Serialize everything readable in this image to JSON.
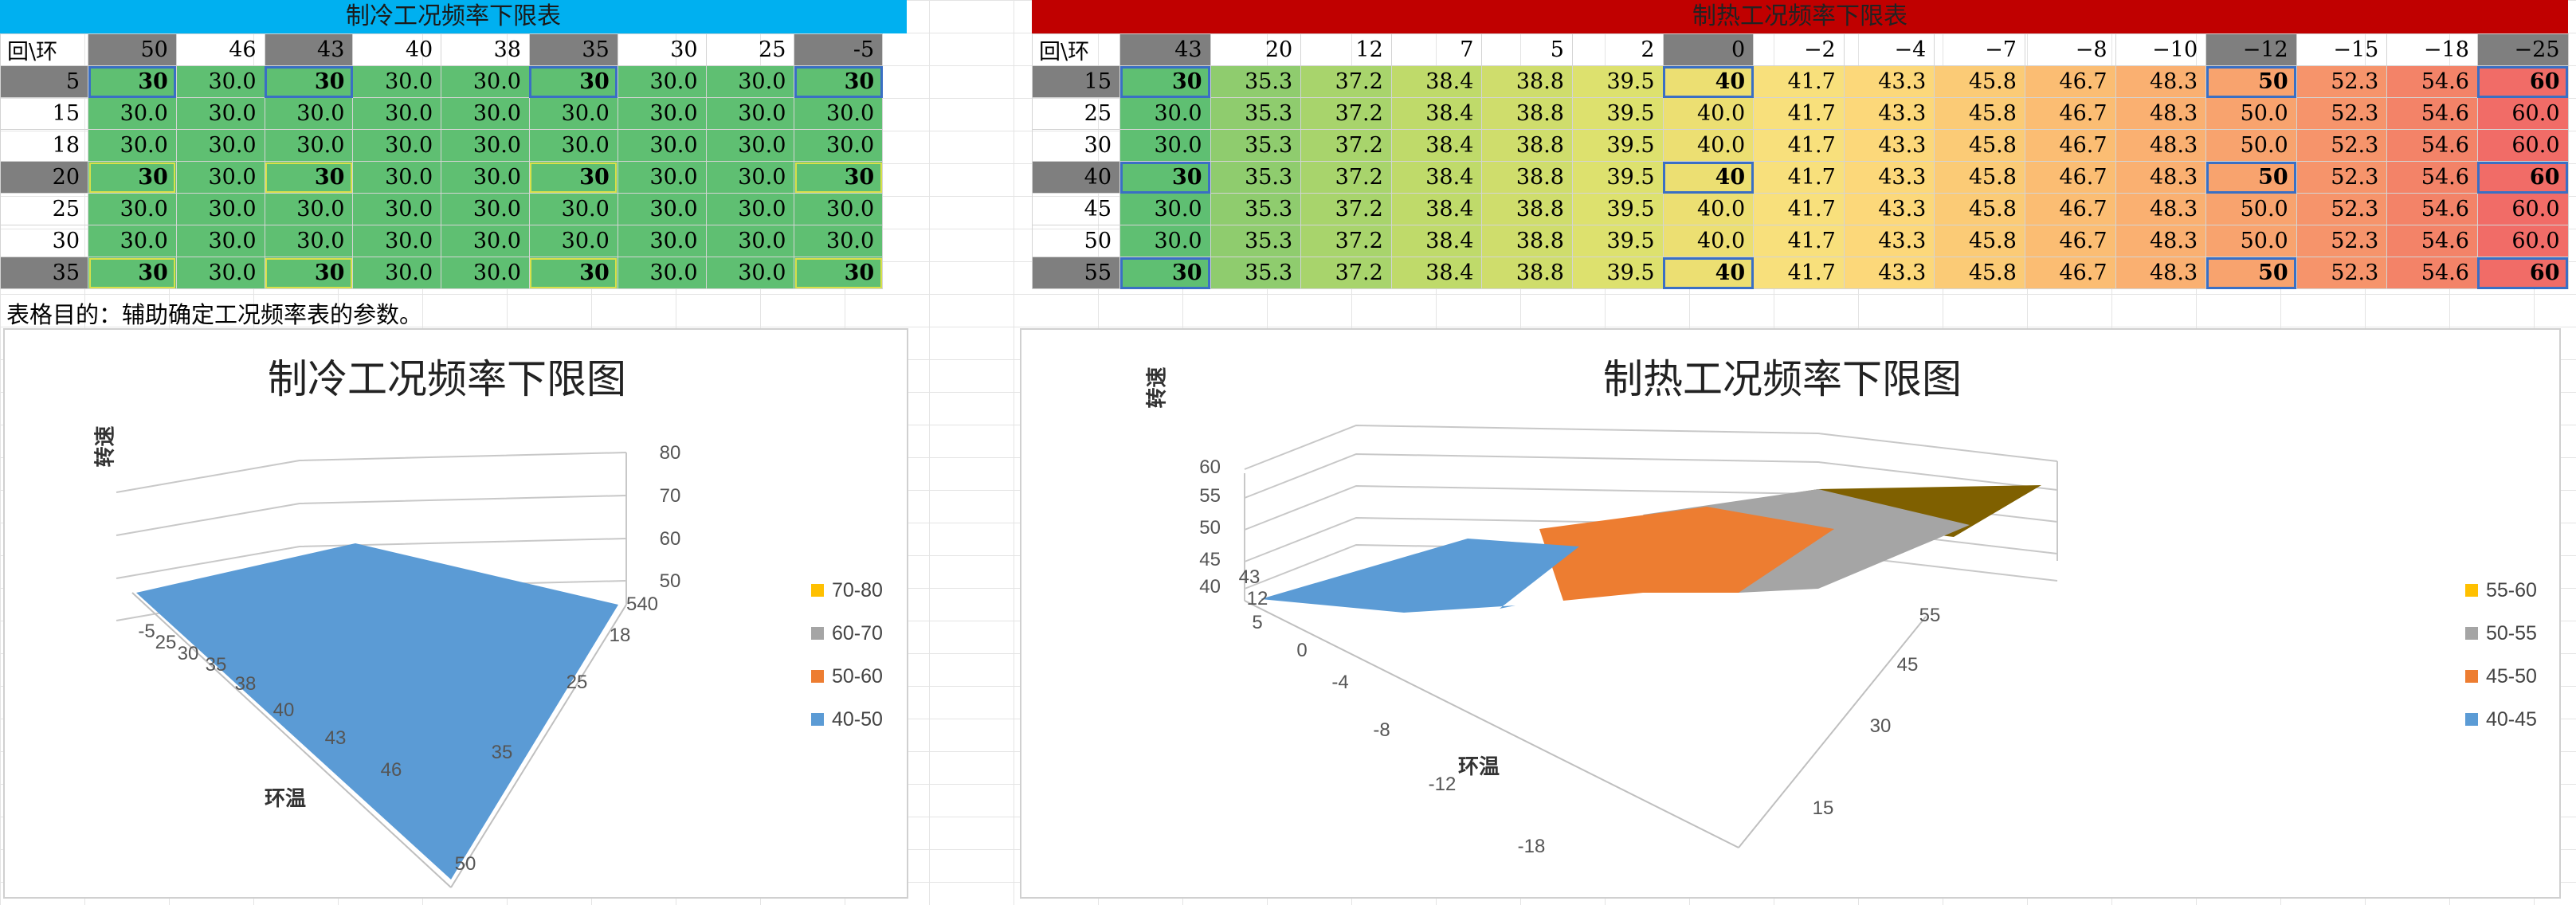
{
  "cooling": {
    "title": "制冷工况频率下限表",
    "corner": "回\\环",
    "columns": [
      "50",
      "46",
      "43",
      "40",
      "38",
      "35",
      "30",
      "25",
      "-5"
    ],
    "rows": [
      {
        "label": "5",
        "values": [
          "30",
          "30.0",
          "30",
          "30.0",
          "30.0",
          "30",
          "30.0",
          "30.0",
          "30"
        ]
      },
      {
        "label": "15",
        "values": [
          "30.0",
          "30.0",
          "30.0",
          "30.0",
          "30.0",
          "30.0",
          "30.0",
          "30.0",
          "30.0"
        ]
      },
      {
        "label": "18",
        "values": [
          "30.0",
          "30.0",
          "30.0",
          "30.0",
          "30.0",
          "30.0",
          "30.0",
          "30.0",
          "30.0"
        ]
      },
      {
        "label": "20",
        "values": [
          "30",
          "30.0",
          "30",
          "30.0",
          "30.0",
          "30",
          "30.0",
          "30.0",
          "30"
        ]
      },
      {
        "label": "25",
        "values": [
          "30.0",
          "30.0",
          "30.0",
          "30.0",
          "30.0",
          "30.0",
          "30.0",
          "30.0",
          "30.0"
        ]
      },
      {
        "label": "30",
        "values": [
          "30.0",
          "30.0",
          "30.0",
          "30.0",
          "30.0",
          "30.0",
          "30.0",
          "30.0",
          "30.0"
        ]
      },
      {
        "label": "35",
        "values": [
          "30",
          "30.0",
          "30",
          "30.0",
          "30.0",
          "30",
          "30.0",
          "30.0",
          "30"
        ]
      }
    ]
  },
  "heating": {
    "title": "制热工况频率下限表",
    "corner": "回\\环",
    "columns": [
      "43",
      "20",
      "12",
      "7",
      "5",
      "2",
      "0",
      "−2",
      "−4",
      "−7",
      "−8",
      "−10",
      "−12",
      "−15",
      "−18",
      "−25"
    ],
    "rows": [
      {
        "label": "15",
        "values": [
          "30",
          "35.3",
          "37.2",
          "38.4",
          "38.8",
          "39.5",
          "40",
          "41.7",
          "43.3",
          "45.8",
          "46.7",
          "48.3",
          "50",
          "52.3",
          "54.6",
          "60"
        ]
      },
      {
        "label": "25",
        "values": [
          "30.0",
          "35.3",
          "37.2",
          "38.4",
          "38.8",
          "39.5",
          "40.0",
          "41.7",
          "43.3",
          "45.8",
          "46.7",
          "48.3",
          "50.0",
          "52.3",
          "54.6",
          "60.0"
        ]
      },
      {
        "label": "30",
        "values": [
          "30.0",
          "35.3",
          "37.2",
          "38.4",
          "38.8",
          "39.5",
          "40.0",
          "41.7",
          "43.3",
          "45.8",
          "46.7",
          "48.3",
          "50.0",
          "52.3",
          "54.6",
          "60.0"
        ]
      },
      {
        "label": "40",
        "values": [
          "30",
          "35.3",
          "37.2",
          "38.4",
          "38.8",
          "39.5",
          "40",
          "41.7",
          "43.3",
          "45.8",
          "46.7",
          "48.3",
          "50",
          "52.3",
          "54.6",
          "60"
        ]
      },
      {
        "label": "45",
        "values": [
          "30.0",
          "35.3",
          "37.2",
          "38.4",
          "38.8",
          "39.5",
          "40.0",
          "41.7",
          "43.3",
          "45.8",
          "46.7",
          "48.3",
          "50.0",
          "52.3",
          "54.6",
          "60.0"
        ]
      },
      {
        "label": "50",
        "values": [
          "30.0",
          "35.3",
          "37.2",
          "38.4",
          "38.8",
          "39.5",
          "40.0",
          "41.7",
          "43.3",
          "45.8",
          "46.7",
          "48.3",
          "50.0",
          "52.3",
          "54.6",
          "60.0"
        ]
      },
      {
        "label": "55",
        "values": [
          "30",
          "35.3",
          "37.2",
          "38.4",
          "38.8",
          "39.5",
          "40",
          "41.7",
          "43.3",
          "45.8",
          "46.7",
          "48.3",
          "50",
          "52.3",
          "54.6",
          "60"
        ]
      }
    ]
  },
  "note": "表格目的：辅助确定工况频率表的参数。",
  "chart_data": [
    {
      "type": "surface",
      "title": "制冷工况频率下限图",
      "xlabel": "环温",
      "ylabel": "转速",
      "x_ticks": [
        "-5",
        "25",
        "30",
        "35",
        "38",
        "40",
        "43",
        "46",
        "50"
      ],
      "depth_ticks": [
        "540",
        "18",
        "25",
        "35"
      ],
      "z_ticks": [
        "50",
        "60",
        "70",
        "80"
      ],
      "legend": [
        {
          "label": "70-80",
          "color": "#ffc000"
        },
        {
          "label": "60-70",
          "color": "#a5a5a5"
        },
        {
          "label": "50-60",
          "color": "#ed7d31"
        },
        {
          "label": "40-50",
          "color": "#5b9bd5"
        }
      ]
    },
    {
      "type": "surface",
      "title": "制热工况频率下限图",
      "xlabel": "环温",
      "ylabel": "转速",
      "x_ticks": [
        "43",
        "12",
        "5",
        "0",
        "-4",
        "-8",
        "-12",
        "-18"
      ],
      "depth_ticks": [
        "55",
        "45",
        "30",
        "15"
      ],
      "z_ticks": [
        "40",
        "45",
        "50",
        "55",
        "60"
      ],
      "legend": [
        {
          "label": "55-60",
          "color": "#ffc000"
        },
        {
          "label": "50-55",
          "color": "#a5a5a5"
        },
        {
          "label": "45-50",
          "color": "#ed7d31"
        },
        {
          "label": "40-45",
          "color": "#5b9bd5"
        }
      ]
    }
  ]
}
